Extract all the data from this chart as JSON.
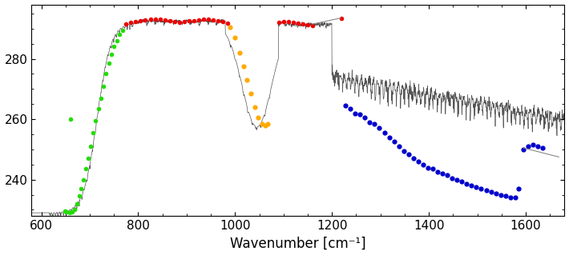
{
  "xlim": [
    580,
    1680
  ],
  "ylim": [
    228,
    298
  ],
  "yticks": [
    240,
    260,
    280
  ],
  "xticks": [
    600,
    800,
    1000,
    1200,
    1400,
    1600
  ],
  "xlabel": "Wavenumber [cm⁻¹]",
  "background_color": "#ffffff",
  "line_color": "#555555",
  "green_channels": [
    [
      648,
      229.5
    ],
    [
      652,
      229.3
    ],
    [
      658,
      229.0
    ],
    [
      664,
      229.2
    ],
    [
      669,
      230.0
    ],
    [
      674,
      232.0
    ],
    [
      678,
      234.5
    ],
    [
      682,
      237.0
    ],
    [
      687,
      240.0
    ],
    [
      692,
      243.5
    ],
    [
      697,
      247.0
    ],
    [
      702,
      251.0
    ],
    [
      707,
      255.5
    ],
    [
      712,
      259.5
    ],
    [
      718,
      263.5
    ],
    [
      723,
      267.0
    ],
    [
      728,
      271.0
    ],
    [
      733,
      275.0
    ],
    [
      739,
      278.5
    ],
    [
      744,
      281.5
    ],
    [
      750,
      284.0
    ],
    [
      756,
      286.0
    ],
    [
      762,
      288.0
    ],
    [
      768,
      289.5
    ],
    [
      660,
      260.0
    ]
  ],
  "red_channels": [
    [
      775,
      291.5
    ],
    [
      785,
      292.0
    ],
    [
      795,
      292.3
    ],
    [
      805,
      292.5
    ],
    [
      815,
      292.8
    ],
    [
      825,
      293.0
    ],
    [
      835,
      293.1
    ],
    [
      845,
      293.0
    ],
    [
      855,
      292.8
    ],
    [
      865,
      292.5
    ],
    [
      875,
      292.3
    ],
    [
      885,
      292.0
    ],
    [
      895,
      292.2
    ],
    [
      905,
      292.5
    ],
    [
      915,
      292.7
    ],
    [
      925,
      292.9
    ],
    [
      935,
      293.0
    ],
    [
      945,
      293.0
    ],
    [
      955,
      292.8
    ],
    [
      965,
      292.5
    ],
    [
      975,
      292.2
    ],
    [
      985,
      291.8
    ],
    [
      1090,
      292.0
    ],
    [
      1100,
      292.2
    ],
    [
      1110,
      292.3
    ],
    [
      1120,
      292.1
    ],
    [
      1130,
      291.8
    ],
    [
      1140,
      291.5
    ],
    [
      1150,
      291.2
    ],
    [
      1160,
      291.0
    ],
    [
      1220,
      293.5
    ]
  ],
  "yellow_channels": [
    [
      990,
      290.5
    ],
    [
      1000,
      287.0
    ],
    [
      1010,
      282.0
    ],
    [
      1018,
      277.5
    ],
    [
      1025,
      273.0
    ],
    [
      1032,
      268.5
    ],
    [
      1040,
      264.0
    ],
    [
      1047,
      260.5
    ],
    [
      1055,
      258.5
    ],
    [
      1062,
      258.0
    ],
    [
      1068,
      258.5
    ]
  ],
  "blue_channels": [
    [
      1228,
      264.5
    ],
    [
      1238,
      263.5
    ],
    [
      1248,
      262.0
    ],
    [
      1258,
      261.5
    ],
    [
      1268,
      260.5
    ],
    [
      1278,
      259.0
    ],
    [
      1288,
      258.5
    ],
    [
      1298,
      257.0
    ],
    [
      1308,
      255.5
    ],
    [
      1318,
      254.0
    ],
    [
      1328,
      252.5
    ],
    [
      1338,
      251.0
    ],
    [
      1348,
      249.5
    ],
    [
      1358,
      248.5
    ],
    [
      1368,
      247.0
    ],
    [
      1378,
      246.0
    ],
    [
      1388,
      245.0
    ],
    [
      1398,
      244.0
    ],
    [
      1408,
      243.5
    ],
    [
      1418,
      242.5
    ],
    [
      1428,
      242.0
    ],
    [
      1438,
      241.5
    ],
    [
      1448,
      240.5
    ],
    [
      1458,
      240.0
    ],
    [
      1468,
      239.5
    ],
    [
      1478,
      238.5
    ],
    [
      1488,
      238.0
    ],
    [
      1498,
      237.5
    ],
    [
      1508,
      237.0
    ],
    [
      1518,
      236.5
    ],
    [
      1528,
      236.0
    ],
    [
      1538,
      235.5
    ],
    [
      1548,
      235.0
    ],
    [
      1558,
      234.5
    ],
    [
      1568,
      234.0
    ],
    [
      1578,
      234.0
    ],
    [
      1585,
      237.0
    ],
    [
      1595,
      250.0
    ],
    [
      1605,
      251.0
    ],
    [
      1615,
      251.5
    ],
    [
      1625,
      251.0
    ],
    [
      1635,
      250.5
    ]
  ],
  "annot_line1": [
    [
      1160,
      291.5
    ],
    [
      1218,
      293.5
    ]
  ],
  "annot_line2": [
    [
      1595,
      250.5
    ],
    [
      1668,
      247.5
    ]
  ]
}
